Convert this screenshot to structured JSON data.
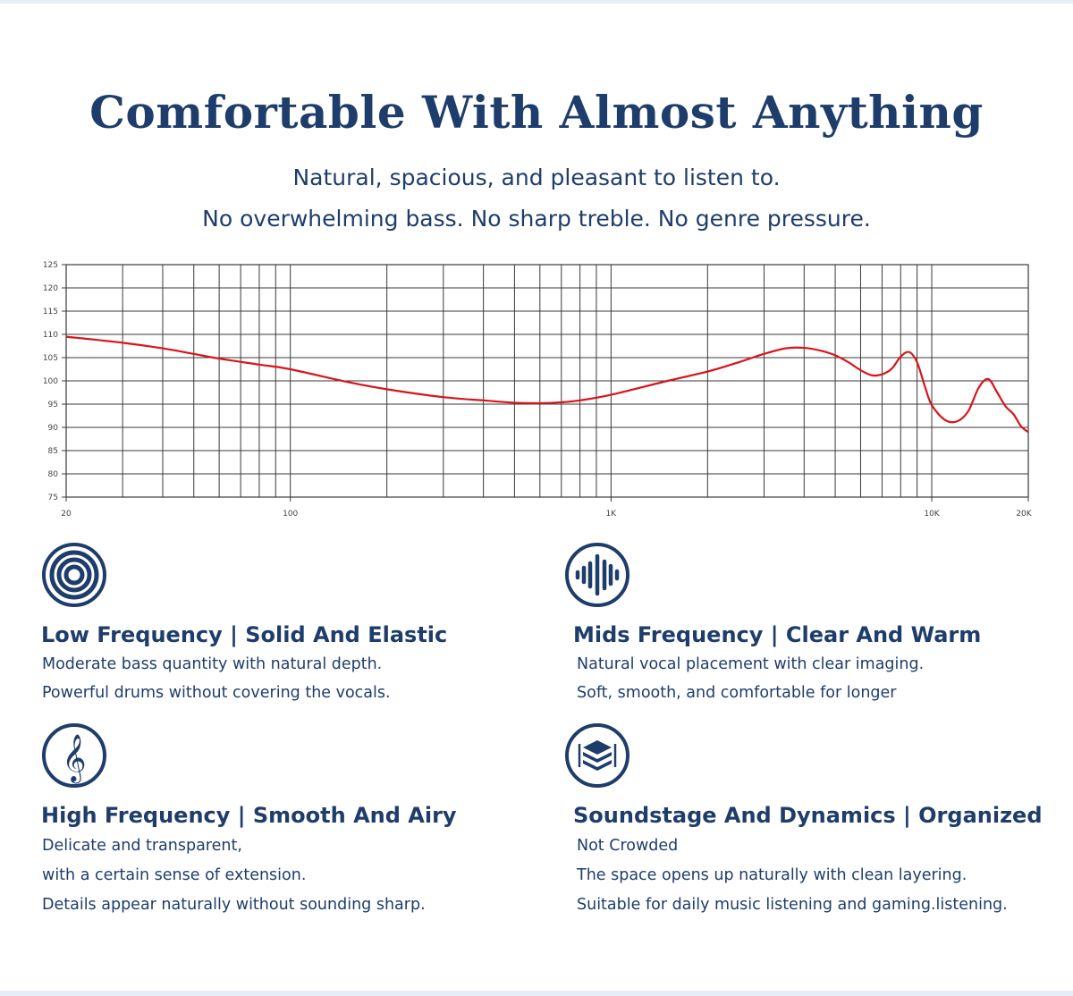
{
  "header": {
    "title": "Comfortable With Almost Anything",
    "subtitle_1": "Natural, spacious, and pleasant to listen to.",
    "subtitle_2": "No overwhelming bass. No sharp treble. No genre pressure."
  },
  "chart_data": {
    "type": "line",
    "xscale": "log",
    "xlim": [
      20,
      20000
    ],
    "ylim": [
      75,
      125
    ],
    "y_ticks": [
      75,
      80,
      85,
      90,
      95,
      100,
      105,
      110,
      115,
      120,
      125
    ],
    "x_tick_labels": [
      {
        "value": 20,
        "label": "20"
      },
      {
        "value": 100,
        "label": "100"
      },
      {
        "value": 1000,
        "label": "1K"
      },
      {
        "value": 10000,
        "label": "10K"
      },
      {
        "value": 20000,
        "label": "20K"
      }
    ],
    "grid": true,
    "series": [
      {
        "color": "#d9141b",
        "x": [
          20,
          30,
          40,
          50,
          60,
          80,
          100,
          150,
          200,
          300,
          400,
          500,
          600,
          700,
          800,
          1000,
          1500,
          2000,
          2500,
          3000,
          3500,
          4000,
          4500,
          5000,
          5500,
          6000,
          6500,
          7000,
          7500,
          8000,
          8500,
          9000,
          9500,
          10000,
          11000,
          12000,
          13000,
          14000,
          15000,
          16000,
          17000,
          18000,
          19000,
          20000
        ],
        "y": [
          109.5,
          108.2,
          107,
          105.8,
          104.8,
          103.5,
          102.5,
          99.8,
          98.2,
          96.5,
          95.8,
          95.3,
          95.2,
          95.4,
          95.8,
          97,
          100,
          102,
          104,
          105.8,
          107,
          107.1,
          106.5,
          105.5,
          104,
          102.3,
          101.2,
          101.4,
          102.6,
          105.2,
          106.2,
          104,
          99,
          94.8,
          91.6,
          91.3,
          93.5,
          98.5,
          100.4,
          97.5,
          94.5,
          92.8,
          90.2,
          89
        ]
      }
    ]
  },
  "features": [
    {
      "icon": "concentric-circles-icon",
      "title": "Low Frequency | Solid And Elastic",
      "lines": [
        "Moderate bass quantity with natural depth.",
        "Powerful drums without covering the vocals."
      ]
    },
    {
      "icon": "sound-wave-icon",
      "title": "Mids Frequency | Clear And Warm",
      "lines": [
        "Natural vocal placement with clear imaging.",
        "Soft, smooth, and comfortable for longer"
      ]
    },
    {
      "icon": "treble-clef-icon",
      "title": "High Frequency | Smooth And Airy",
      "lines": [
        "Delicate and transparent,",
        "with a certain sense of extension.",
        "Details appear naturally without sounding sharp."
      ]
    },
    {
      "icon": "layers-icon",
      "title": "Soundstage And Dynamics | Organized",
      "lines": [
        "Not Crowded",
        "The space opens up naturally with clean layering.",
        "Suitable for daily music listening and gaming.listening."
      ]
    }
  ],
  "colors": {
    "navy": "#1e3d6b",
    "curve": "#d9141b",
    "grid": "#3a3a3a"
  }
}
